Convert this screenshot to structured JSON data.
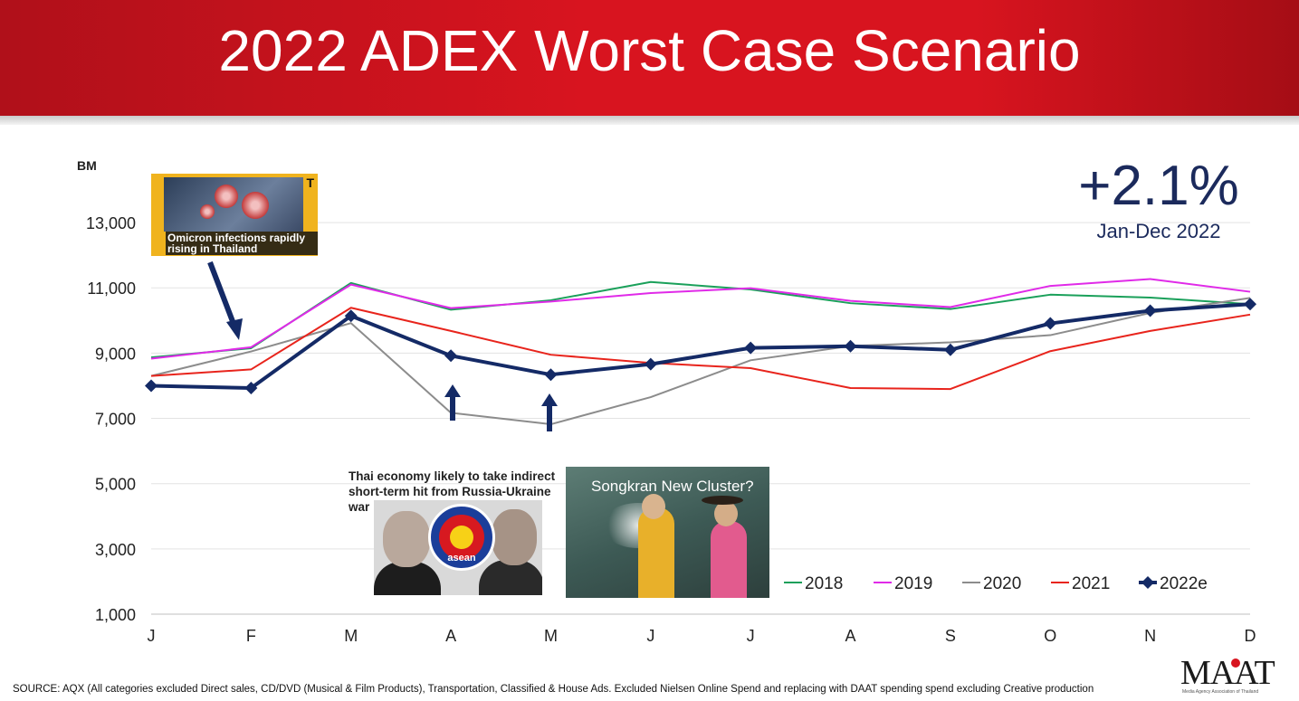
{
  "slide": {
    "title": "2022 ADEX Worst Case Scenario",
    "kpi_value": "+2.1%",
    "kpi_label": "Jan-Dec 2022",
    "source_note": "SOURCE: AQX (All categories excluded Direct sales, CD/DVD (Musical & Film Products), Transportation, Classified & House Ads. Excluded Nielsen Online Spend and replacing with DAAT spending spend excluding Creative production",
    "logo_text": "MAAT",
    "logo_subtitle": "Media Agency Association of Thailand"
  },
  "annotations": {
    "omicron_caption": "Omicron infections rapidly rising in Thailand",
    "omicron_logo": "T",
    "war_caption": "Thai economy likely to take indirect short-term hit from Russia-Ukraine war",
    "asean_text": "asean",
    "songkran_caption": "Songkran New Cluster?"
  },
  "colors": {
    "banner": "#d8141f",
    "kpi": "#1b2a5c",
    "series_2018": "#1aa05a",
    "series_2019": "#e02ae8",
    "series_2020": "#8c8c8c",
    "series_2021": "#e8241c",
    "series_2022e": "#142a66"
  },
  "chart_data": {
    "type": "line",
    "ylabel": "BM",
    "ylim": [
      1000,
      14000
    ],
    "yticks": [
      1000,
      3000,
      5000,
      7000,
      9000,
      11000,
      13000
    ],
    "ytick_labels": [
      "1,000",
      "3,000",
      "5,000",
      "7,000",
      "9,000",
      "11,000",
      "13,000"
    ],
    "categories": [
      "J",
      "F",
      "M",
      "A",
      "M",
      "J",
      "J",
      "A",
      "S",
      "O",
      "N",
      "D"
    ],
    "grid": "horizontal",
    "legend_position": "bottom-right",
    "series": [
      {
        "name": "2018",
        "color": "#1aa05a",
        "marker": "none",
        "values": [
          8870,
          9150,
          11150,
          10330,
          10620,
          11180,
          10950,
          10530,
          10350,
          10790,
          10700,
          10500
        ]
      },
      {
        "name": "2019",
        "color": "#e02ae8",
        "marker": "none",
        "values": [
          8830,
          9180,
          11100,
          10380,
          10580,
          10840,
          10990,
          10600,
          10410,
          11060,
          11270,
          10880
        ]
      },
      {
        "name": "2020",
        "color": "#8c8c8c",
        "marker": "none",
        "values": [
          8300,
          9050,
          9920,
          7170,
          6820,
          7650,
          8780,
          9220,
          9330,
          9550,
          10230,
          10690
        ]
      },
      {
        "name": "2021",
        "color": "#e8241c",
        "marker": "none",
        "values": [
          8300,
          8500,
          10390,
          9680,
          8950,
          8700,
          8540,
          7930,
          7900,
          9060,
          9680,
          10180
        ]
      },
      {
        "name": "2022e",
        "color": "#142a66",
        "marker": "diamond",
        "values": [
          8000,
          7930,
          10140,
          8920,
          8340,
          8660,
          9160,
          9210,
          9100,
          9910,
          10300,
          10500
        ]
      }
    ],
    "arrows": [
      {
        "target": "F",
        "direction": "down",
        "annotation": "omicron"
      },
      {
        "target": "A",
        "direction": "up",
        "annotation": "war"
      },
      {
        "target": "M",
        "direction": "up",
        "annotation": "songkran"
      }
    ]
  }
}
